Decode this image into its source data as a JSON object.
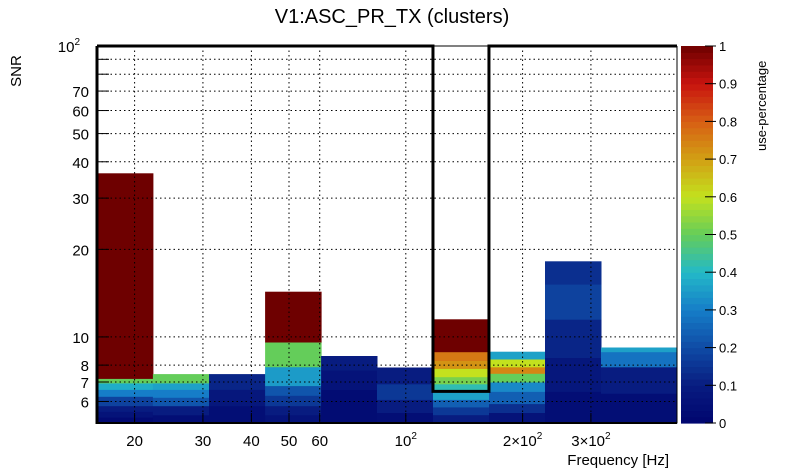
{
  "chart_data": {
    "type": "heatmap",
    "title": "V1:ASC_PR_TX (clusters)",
    "xlabel": "Frequency [Hz]",
    "ylabel": "SNR",
    "zlabel": "use-percentage",
    "xscale": "log",
    "yscale": "log",
    "xlim": [
      16,
      500
    ],
    "ylim": [
      5.06,
      100
    ],
    "zlim": [
      0,
      1
    ],
    "grid": true,
    "x_ticks": [
      {
        "value": 20,
        "label": "20"
      },
      {
        "value": 30,
        "label": "30"
      },
      {
        "value": 40,
        "label": "40"
      },
      {
        "value": 50,
        "label": "50"
      },
      {
        "value": 60,
        "label": "60"
      },
      {
        "value": 100,
        "label": "10",
        "exp": "2"
      },
      {
        "value": 200,
        "label": "2×10",
        "exp": "2"
      },
      {
        "value": 300,
        "label": "3×10",
        "exp": "2"
      }
    ],
    "y_ticks": [
      {
        "value": 6,
        "label": "6"
      },
      {
        "value": 7,
        "label": "7"
      },
      {
        "value": 8,
        "label": "8"
      },
      {
        "value": 10,
        "label": "10"
      },
      {
        "value": 20,
        "label": "20"
      },
      {
        "value": 30,
        "label": "30"
      },
      {
        "value": 40,
        "label": "40"
      },
      {
        "value": 50,
        "label": "50"
      },
      {
        "value": 60,
        "label": "60"
      },
      {
        "value": 70,
        "label": "70"
      },
      {
        "value": 100,
        "label": "10",
        "exp": "2"
      }
    ],
    "z_ticks": [
      "0",
      "0.1",
      "0.2",
      "0.3",
      "0.4",
      "0.5",
      "0.6",
      "0.7",
      "0.8",
      "0.9",
      "1"
    ],
    "highlight_bin": 6,
    "bins": [
      {
        "fmin": 16.0,
        "fmax": 22.3,
        "snr_max": 36.5,
        "cells": [
          [
            5.06,
            5.3,
            0.02
          ],
          [
            5.3,
            5.55,
            0.06
          ],
          [
            5.55,
            5.8,
            0.1
          ],
          [
            5.8,
            6.25,
            0.18
          ],
          [
            6.25,
            6.6,
            0.3
          ],
          [
            6.6,
            6.95,
            0.38
          ],
          [
            6.95,
            7.2,
            0.5
          ],
          [
            7.2,
            36.5,
            1.0
          ]
        ]
      },
      {
        "fmin": 22.3,
        "fmax": 31.1,
        "snr_max": 7.45,
        "cells": [
          [
            5.06,
            5.4,
            0.04
          ],
          [
            5.4,
            5.8,
            0.1
          ],
          [
            5.8,
            6.2,
            0.22
          ],
          [
            6.2,
            6.6,
            0.3
          ],
          [
            6.6,
            6.95,
            0.36
          ],
          [
            6.95,
            7.45,
            0.5
          ]
        ]
      },
      {
        "fmin": 31.1,
        "fmax": 43.4,
        "snr_max": 7.45,
        "cells": [
          [
            5.06,
            5.8,
            0.04
          ],
          [
            5.8,
            6.6,
            0.08
          ],
          [
            6.6,
            7.45,
            0.12
          ]
        ]
      },
      {
        "fmin": 43.4,
        "fmax": 60.5,
        "snr_max": 14.3,
        "cells": [
          [
            5.06,
            5.4,
            0.06
          ],
          [
            5.4,
            5.8,
            0.1
          ],
          [
            5.8,
            6.3,
            0.16
          ],
          [
            6.3,
            6.8,
            0.22
          ],
          [
            6.8,
            7.9,
            0.35
          ],
          [
            7.9,
            9.6,
            0.5
          ],
          [
            9.6,
            14.3,
            1.0
          ]
        ]
      },
      {
        "fmin": 60.5,
        "fmax": 84.3,
        "snr_max": 8.6,
        "cells": [
          [
            5.06,
            6.6,
            0.03
          ],
          [
            6.6,
            7.7,
            0.06
          ],
          [
            7.7,
            8.6,
            0.1
          ]
        ]
      },
      {
        "fmin": 84.3,
        "fmax": 117.5,
        "snr_max": 7.85,
        "cells": [
          [
            5.06,
            5.5,
            0.04
          ],
          [
            5.5,
            6.1,
            0.1
          ],
          [
            6.1,
            6.9,
            0.16
          ],
          [
            6.9,
            7.85,
            0.1
          ]
        ]
      },
      {
        "fmin": 117.5,
        "fmax": 163.8,
        "snr_max": 11.5,
        "cells": [
          [
            5.06,
            5.4,
            0.1
          ],
          [
            5.4,
            5.75,
            0.16
          ],
          [
            5.75,
            6.1,
            0.24
          ],
          [
            6.1,
            6.5,
            0.36
          ],
          [
            6.5,
            6.9,
            0.42
          ],
          [
            6.9,
            7.3,
            0.52
          ],
          [
            7.3,
            7.8,
            0.6
          ],
          [
            7.8,
            8.3,
            0.72
          ],
          [
            8.3,
            8.9,
            0.76
          ],
          [
            8.9,
            11.5,
            1.0
          ]
        ]
      },
      {
        "fmin": 163.8,
        "fmax": 228.4,
        "snr_max": 8.9,
        "cells": [
          [
            5.06,
            5.5,
            0.06
          ],
          [
            5.5,
            5.9,
            0.14
          ],
          [
            5.9,
            6.5,
            0.24
          ],
          [
            6.5,
            7.0,
            0.32
          ],
          [
            7.0,
            7.5,
            0.5
          ],
          [
            7.5,
            7.9,
            0.74
          ],
          [
            7.9,
            8.4,
            0.6
          ],
          [
            8.4,
            8.9,
            0.36
          ]
        ]
      },
      {
        "fmin": 228.4,
        "fmax": 318.4,
        "snr_max": 18.2,
        "cells": [
          [
            5.06,
            6.5,
            0.04
          ],
          [
            6.5,
            8.5,
            0.08
          ],
          [
            8.5,
            11.5,
            0.12
          ],
          [
            11.5,
            15.2,
            0.18
          ],
          [
            15.2,
            18.2,
            0.14
          ]
        ]
      },
      {
        "fmin": 318.4,
        "fmax": 500,
        "snr_max": 9.2,
        "cells": [
          [
            5.06,
            6.4,
            0.04
          ],
          [
            6.4,
            7.9,
            0.1
          ],
          [
            7.9,
            8.9,
            0.28
          ],
          [
            8.9,
            9.2,
            0.36
          ]
        ]
      }
    ]
  }
}
